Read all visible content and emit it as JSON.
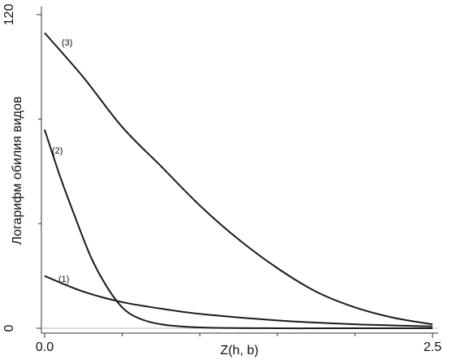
{
  "chart_data": {
    "type": "line",
    "xlabel": "Z(h, b)",
    "ylabel": "Логарифм обилия видов",
    "xlim": [
      0,
      2.5
    ],
    "ylim": [
      0,
      120
    ],
    "xticks": [
      {
        "value": 0,
        "label": "0.0"
      },
      2.5
    ],
    "xminorticks": [
      0.5,
      1.0,
      1.5,
      2.0
    ],
    "yticks": [
      0,
      120
    ],
    "yminorticks": [
      40,
      80
    ],
    "series": [
      {
        "name": "(1)",
        "color": "#1a1a1a",
        "x": [
          0,
          0.25,
          0.5,
          0.75,
          1.0,
          1.5,
          2.0,
          2.5
        ],
        "values": [
          20,
          14,
          10,
          7.5,
          5.5,
          3,
          1.5,
          0.7
        ]
      },
      {
        "name": "(2)",
        "color": "#1a1a1a",
        "x": [
          0,
          0.1,
          0.2,
          0.3,
          0.4,
          0.5,
          0.6,
          0.75,
          1.0,
          1.5,
          2.0,
          2.5
        ],
        "values": [
          76,
          58,
          42,
          27,
          16,
          8,
          4,
          1.5,
          0.3,
          0,
          0,
          0
        ]
      },
      {
        "name": "(3)",
        "color": "#1a1a1a",
        "x": [
          0,
          0.25,
          0.5,
          0.75,
          1.0,
          1.25,
          1.5,
          1.75,
          2.0,
          2.25,
          2.5
        ],
        "values": [
          113,
          96,
          77,
          62,
          47,
          34,
          23,
          14,
          8,
          4,
          1.5
        ]
      }
    ]
  }
}
